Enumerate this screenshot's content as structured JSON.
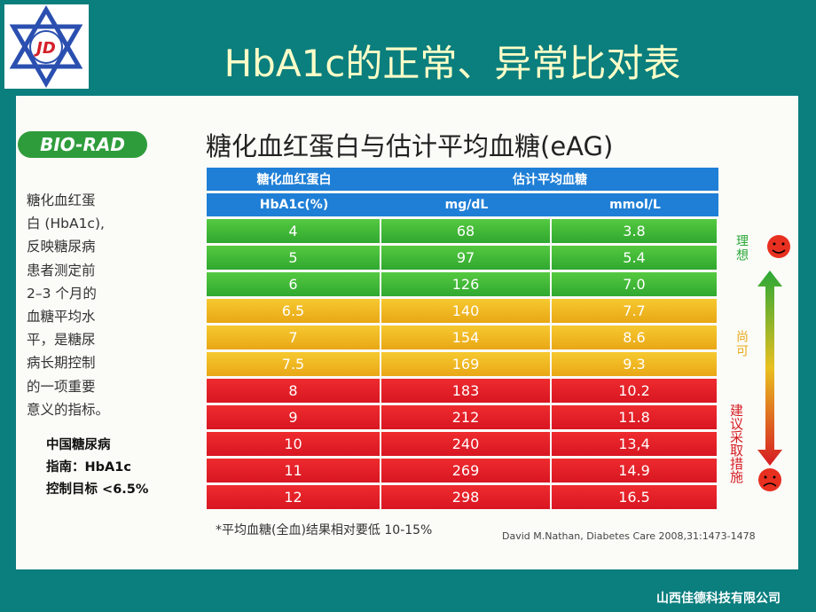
{
  "header": {
    "logo": "JD",
    "title": "HbA1c的正常、异常比对表"
  },
  "card": {
    "brand": "BIO-RAD",
    "table_title": "糖化血红蛋白与估计平均血糖(eAG)",
    "description": [
      "糖化血红蛋",
      "白 (HbA1c),",
      "反映糖尿病",
      "患者测定前",
      "2–3 个月的",
      "血糖平均水",
      "平，是糖尿",
      "病长期控制",
      "的一项重要",
      "意义的指标。"
    ],
    "guideline": [
      "中国糖尿病",
      "指南：HbA1c",
      "控制目标 <6.5%"
    ],
    "table": {
      "header_groups": [
        "糖化血红蛋白",
        "估计平均血糖"
      ],
      "header_units": [
        "HbA1c(%)",
        "mg/dL",
        "mmol/L"
      ],
      "rows": [
        [
          "4",
          "68",
          "3.8"
        ],
        [
          "5",
          "97",
          "5.4"
        ],
        [
          "6",
          "126",
          "7.0"
        ],
        [
          "6.5",
          "140",
          "7.7"
        ],
        [
          "7",
          "154",
          "8.6"
        ],
        [
          "7.5",
          "169",
          "9.3"
        ],
        [
          "8",
          "183",
          "10.2"
        ],
        [
          "9",
          "212",
          "11.8"
        ],
        [
          "10",
          "240",
          "13,4"
        ],
        [
          "11",
          "269",
          "14.9"
        ],
        [
          "12",
          "298",
          "16.5"
        ]
      ]
    },
    "side_labels": [
      "理想",
      "尚可",
      "建议采取措施"
    ],
    "footnote": "*平均血糖(全血)结果相对要低 10-15%",
    "citation": "David M.Nathan, Diabetes Care 2008,31:1473-1478"
  },
  "footer": "山西佳德科技有限公司"
}
